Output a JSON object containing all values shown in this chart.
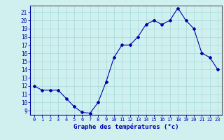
{
  "hours": [
    0,
    1,
    2,
    3,
    4,
    5,
    6,
    7,
    8,
    9,
    10,
    11,
    12,
    13,
    14,
    15,
    16,
    17,
    18,
    19,
    20,
    21,
    22,
    23
  ],
  "temps": [
    12,
    11.5,
    11.5,
    11.5,
    10.5,
    9.5,
    8.8,
    8.7,
    10,
    12.5,
    15.5,
    17,
    17,
    18,
    19.5,
    20,
    19.5,
    20,
    21.5,
    20,
    19,
    16,
    15.5,
    14
  ],
  "line_color": "#0000aa",
  "marker": "D",
  "marker_size": 2,
  "bg_color": "#d0f0f0",
  "grid_color": "#aadddd",
  "xlabel": "Graphe des températures (°c)",
  "tick_color": "#0000aa",
  "xlim": [
    -0.5,
    23.5
  ],
  "ylim": [
    8.5,
    21.8
  ],
  "yticks": [
    9,
    10,
    11,
    12,
    13,
    14,
    15,
    16,
    17,
    18,
    19,
    20,
    21
  ],
  "xticks": [
    0,
    1,
    2,
    3,
    4,
    5,
    6,
    7,
    8,
    9,
    10,
    11,
    12,
    13,
    14,
    15,
    16,
    17,
    18,
    19,
    20,
    21,
    22,
    23
  ],
  "axis_color": "#0000aa",
  "spine_color": "#555555"
}
